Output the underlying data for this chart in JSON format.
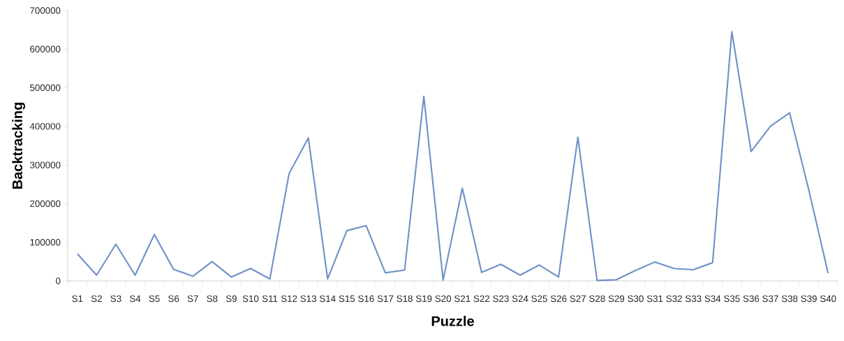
{
  "chart_data": {
    "type": "line",
    "xlabel": "Puzzle",
    "ylabel": "Backtracking",
    "categories": [
      "S1",
      "S2",
      "S3",
      "S4",
      "S5",
      "S6",
      "S7",
      "S8",
      "S9",
      "S10",
      "S11",
      "S12",
      "S13",
      "S14",
      "S15",
      "S16",
      "S17",
      "S18",
      "S19",
      "S20",
      "S21",
      "S22",
      "S23",
      "S24",
      "S25",
      "S26",
      "S27",
      "S28",
      "S29",
      "S30",
      "S31",
      "S32",
      "S33",
      "S34",
      "S35",
      "S36",
      "S37",
      "S38",
      "S39",
      "S40"
    ],
    "values": [
      70000,
      15000,
      95000,
      15000,
      120000,
      30000,
      12000,
      50000,
      10000,
      32000,
      5000,
      278000,
      370000,
      5000,
      130000,
      143000,
      21000,
      28000,
      478000,
      2000,
      240000,
      22000,
      43000,
      15000,
      41000,
      10000,
      372000,
      1000,
      3000,
      27000,
      49000,
      32000,
      29000,
      47000,
      645000,
      335000,
      400000,
      435000,
      235000,
      20000
    ],
    "color": "#6f91c8",
    "ylim": [
      0,
      700000
    ],
    "yticks": [
      0,
      100000,
      200000,
      300000,
      400000,
      500000,
      600000,
      700000
    ],
    "grid": false,
    "marker": "none",
    "line_style": "solid"
  }
}
